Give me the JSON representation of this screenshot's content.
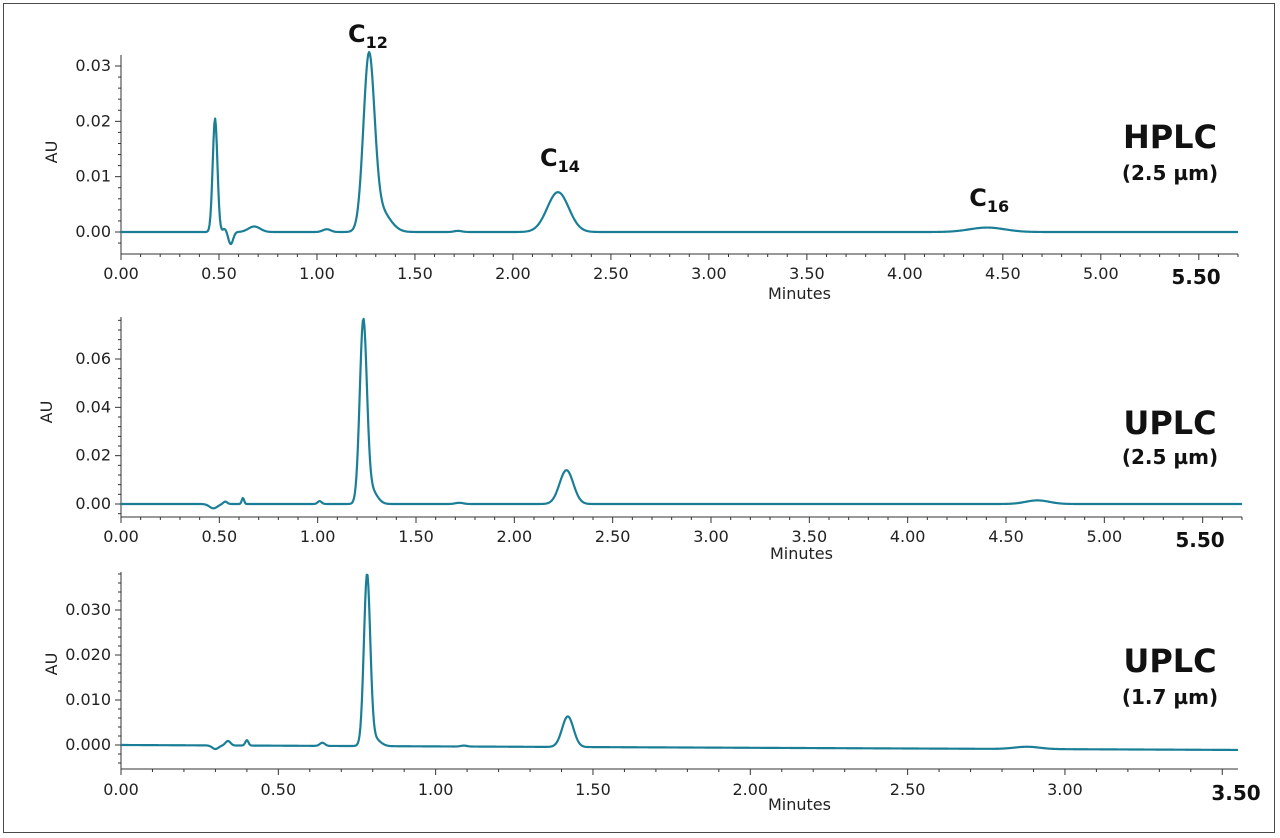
{
  "chart_data": [
    {
      "type": "line",
      "label": "HPLC",
      "sublabel": "(2.5 µm)",
      "xlabel": "Minutes",
      "ylabel": "AU",
      "xlim": [
        0,
        5.7
      ],
      "ylim": [
        -0.0035,
        0.032
      ],
      "x_ticks": [
        "0.00",
        "0.50",
        "1.00",
        "1.50",
        "2.00",
        "2.50",
        "3.00",
        "3.50",
        "4.00",
        "4.50",
        "5.00"
      ],
      "x_ticks_bold": "5.50",
      "y_ticks": [
        "0.00",
        "0.01",
        "0.02",
        "0.03"
      ],
      "peak_labels": [
        {
          "base": "C",
          "sub": "12",
          "x": 1.25
        },
        {
          "base": "C",
          "sub": "14",
          "x": 2.23
        },
        {
          "base": "C",
          "sub": "16",
          "x": 4.42
        }
      ],
      "peaks": [
        {
          "x": 0.48,
          "y": 0.0205
        },
        {
          "x": 1.26,
          "y": 0.0303
        },
        {
          "x": 2.23,
          "y": 0.0072
        },
        {
          "x": 4.42,
          "y": 0.0008
        }
      ]
    },
    {
      "type": "line",
      "label": "UPLC",
      "sublabel": "(2.5 µm)",
      "xlabel": "Minutes",
      "ylabel": "AU",
      "xlim": [
        0,
        5.7
      ],
      "ylim": [
        -0.004,
        0.076
      ],
      "x_ticks": [
        "0.00",
        "0.50",
        "1.00",
        "1.50",
        "2.00",
        "2.50",
        "3.00",
        "3.50",
        "4.00",
        "4.50",
        "5.00"
      ],
      "x_ticks_bold": "5.50",
      "y_ticks": [
        "0.00",
        "0.02",
        "0.04",
        "0.06"
      ],
      "peaks": [
        {
          "x": 1.23,
          "y": 0.074
        },
        {
          "x": 2.26,
          "y": 0.014
        },
        {
          "x": 4.66,
          "y": 0.0015
        }
      ]
    },
    {
      "type": "line",
      "label": "UPLC",
      "sublabel": "(1.7 µm)",
      "xlabel": "Minutes",
      "ylabel": "AU",
      "xlim": [
        0,
        3.55
      ],
      "ylim": [
        -0.003,
        0.038
      ],
      "x_ticks": [
        "0.00",
        "0.50",
        "1.00",
        "1.50",
        "2.00",
        "2.50",
        "3.00"
      ],
      "x_ticks_bold": "3.50",
      "y_ticks": [
        "0.000",
        "0.010",
        "0.020",
        "0.030"
      ],
      "peaks": [
        {
          "x": 0.78,
          "y": 0.037
        },
        {
          "x": 1.42,
          "y": 0.0065
        },
        {
          "x": 2.88,
          "y": 0.0
        }
      ]
    }
  ]
}
